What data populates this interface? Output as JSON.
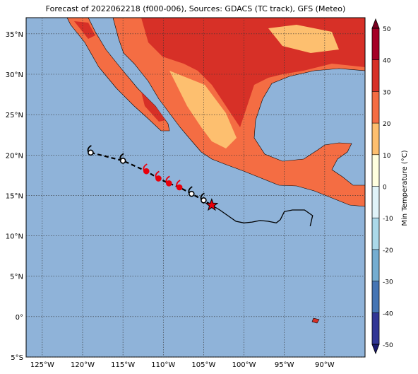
{
  "chart_data": {
    "type": "map",
    "title": "Forecast of 2022062218 (f000-006), Sources: GDACS (TC track), GFS (Meteo)",
    "xlim": [
      -127,
      -85
    ],
    "ylim": [
      -5,
      37
    ],
    "xticks": [
      {
        "value": -125,
        "label": "125°W"
      },
      {
        "value": -120,
        "label": "120°W"
      },
      {
        "value": -115,
        "label": "115°W"
      },
      {
        "value": -110,
        "label": "110°W"
      },
      {
        "value": -105,
        "label": "105°W"
      },
      {
        "value": -100,
        "label": "100°W"
      },
      {
        "value": -95,
        "label": "95°W"
      },
      {
        "value": -90,
        "label": "90°W"
      }
    ],
    "yticks": [
      {
        "value": -5,
        "label": "5°S"
      },
      {
        "value": 0,
        "label": "0°"
      },
      {
        "value": 5,
        "label": "5°N"
      },
      {
        "value": 10,
        "label": "10°N"
      },
      {
        "value": 15,
        "label": "15°N"
      },
      {
        "value": 20,
        "label": "20°N"
      },
      {
        "value": 25,
        "label": "25°N"
      },
      {
        "value": 30,
        "label": "30°N"
      },
      {
        "value": 35,
        "label": "35°N"
      }
    ],
    "grid": true,
    "ocean_color": "#8fb3d9",
    "forecast_track": {
      "lon": [
        -119,
        -115,
        -112.1,
        -110.6,
        -109.3,
        -108,
        -106.5,
        -105
      ],
      "lat": [
        20.3,
        19.3,
        18,
        17.1,
        16.5,
        16,
        15.2,
        14.4
      ],
      "colors": [
        "#ffffff",
        "#ffffff",
        "#e8000b",
        "#e8000b",
        "#e8000b",
        "#e8000b",
        "#ffffff",
        "#ffffff"
      ]
    },
    "current_position": {
      "lon": -104,
      "lat": 13.8,
      "color": "#e8000b"
    },
    "past_track": {
      "lon": [
        -104,
        -103,
        -102,
        -101,
        -100,
        -99,
        -98,
        -97,
        -96,
        -95.5,
        -95,
        -94,
        -92.5,
        -91.5,
        -91.8
      ],
      "lat": [
        13.8,
        13.2,
        12.5,
        11.8,
        11.6,
        11.7,
        11.9,
        11.8,
        11.6,
        12,
        13,
        13.2,
        13.2,
        12.5,
        11.2
      ]
    },
    "colorbar": {
      "label": "Min Temperature (°C)",
      "lim": [
        -50,
        50
      ],
      "ticks": [
        -50,
        -40,
        -30,
        -20,
        -10,
        0,
        10,
        20,
        30,
        40,
        50
      ],
      "colors": [
        "#313695",
        "#4575b4",
        "#74add1",
        "#abd9e9",
        "#e0f3f8",
        "#ffffdf",
        "#fdbf6f",
        "#f46d43",
        "#d73027",
        "#a50026"
      ],
      "under_color": "#1a1a6e",
      "over_color": "#7a0020"
    }
  }
}
